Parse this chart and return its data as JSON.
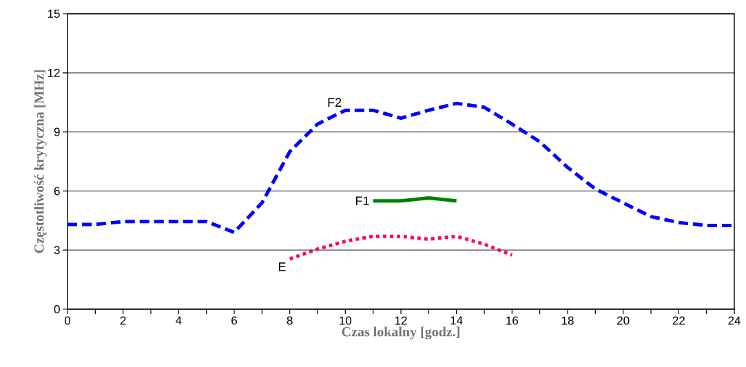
{
  "chart_data": {
    "type": "line",
    "xlabel": "Czas lokalny [godz.]",
    "ylabel": "Częstotliwość krytyczna [MHz]",
    "xlim": [
      0,
      24
    ],
    "ylim": [
      0,
      15
    ],
    "xticks": [
      0,
      {
        "value": 1,
        "label": null
      },
      2,
      {
        "value": 3,
        "label": null
      },
      4,
      {
        "value": 5,
        "label": null
      },
      6,
      {
        "value": 7,
        "label": null
      },
      8,
      {
        "value": 9,
        "label": null
      },
      10,
      {
        "value": 11,
        "label": null
      },
      12,
      {
        "value": 13,
        "label": null
      },
      14,
      {
        "value": 15,
        "label": null
      },
      16,
      {
        "value": 17,
        "label": null
      },
      18,
      {
        "value": 19,
        "label": null
      },
      20,
      {
        "value": 21,
        "label": null
      },
      22,
      {
        "value": 23,
        "label": null
      },
      24
    ],
    "yticks": [
      0,
      3,
      6,
      9,
      12,
      15
    ],
    "grid": "y",
    "marker": "none",
    "series": [
      {
        "name": "F2",
        "color": "#0000ff",
        "line_style": "dashed",
        "x": [
          0,
          1,
          2,
          3,
          4,
          5,
          6,
          7,
          8,
          9,
          10,
          11,
          12,
          13,
          14,
          15,
          16,
          17,
          18,
          19,
          20,
          21,
          22,
          23,
          24
        ],
        "values": [
          4.3,
          4.3,
          4.45,
          4.45,
          4.45,
          4.45,
          3.9,
          5.4,
          8.0,
          9.4,
          10.1,
          10.1,
          9.7,
          10.1,
          10.45,
          10.25,
          9.4,
          8.5,
          7.2,
          6.1,
          5.4,
          4.7,
          4.4,
          4.25,
          4.25
        ]
      },
      {
        "name": "F1",
        "color": "#008000",
        "line_style": "solid",
        "x": [
          11,
          12,
          13,
          14
        ],
        "values": [
          5.5,
          5.5,
          5.65,
          5.5
        ]
      },
      {
        "name": "E",
        "color": "#ff0066",
        "line_style": "dotted",
        "x": [
          8,
          9,
          10,
          11,
          12,
          13,
          14,
          15,
          16
        ],
        "values": [
          2.55,
          3.05,
          3.45,
          3.7,
          3.7,
          3.55,
          3.7,
          3.3,
          2.75
        ]
      }
    ]
  }
}
